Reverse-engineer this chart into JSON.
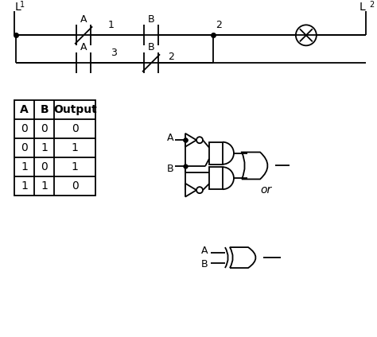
{
  "bg_color": "#ffffff",
  "L1_label": "L",
  "L2_label": "L",
  "truth_table": {
    "headers": [
      "A",
      "B",
      "Output"
    ],
    "rows": [
      [
        "0",
        "0",
        "0"
      ],
      [
        "0",
        "1",
        "1"
      ],
      [
        "1",
        "0",
        "1"
      ],
      [
        "1",
        "1",
        "0"
      ]
    ]
  },
  "or_text": "or"
}
